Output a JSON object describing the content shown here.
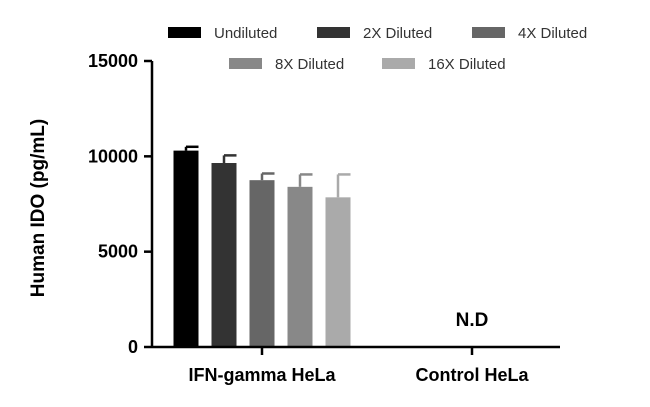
{
  "chart_data": {
    "type": "bar",
    "ylabel": "Human IDO (pg/mL)",
    "ylim": [
      0,
      15000
    ],
    "yticks": [
      "0",
      "5000",
      "10000",
      "15000"
    ],
    "categories": [
      "IFN-gamma HeLa",
      "Control HeLa"
    ],
    "series": [
      {
        "name": "Undiluted",
        "color": "#000000",
        "values": [
          10300,
          null
        ],
        "errors": [
          200,
          null
        ]
      },
      {
        "name": "2X Diluted",
        "color": "#333333",
        "values": [
          9650,
          null
        ],
        "errors": [
          400,
          null
        ]
      },
      {
        "name": "4X Diluted",
        "color": "#666666",
        "values": [
          8750,
          null
        ],
        "errors": [
          350,
          null
        ]
      },
      {
        "name": "8X Diluted",
        "color": "#888888",
        "values": [
          8400,
          null
        ],
        "errors": [
          650,
          null
        ]
      },
      {
        "name": "16X Diluted",
        "color": "#aaaaaa",
        "values": [
          7850,
          null
        ],
        "errors": [
          1200,
          null
        ]
      }
    ],
    "annotations": [
      {
        "category": "Control HeLa",
        "text": "N.D"
      }
    ],
    "legend_position": "top",
    "grid": false
  }
}
